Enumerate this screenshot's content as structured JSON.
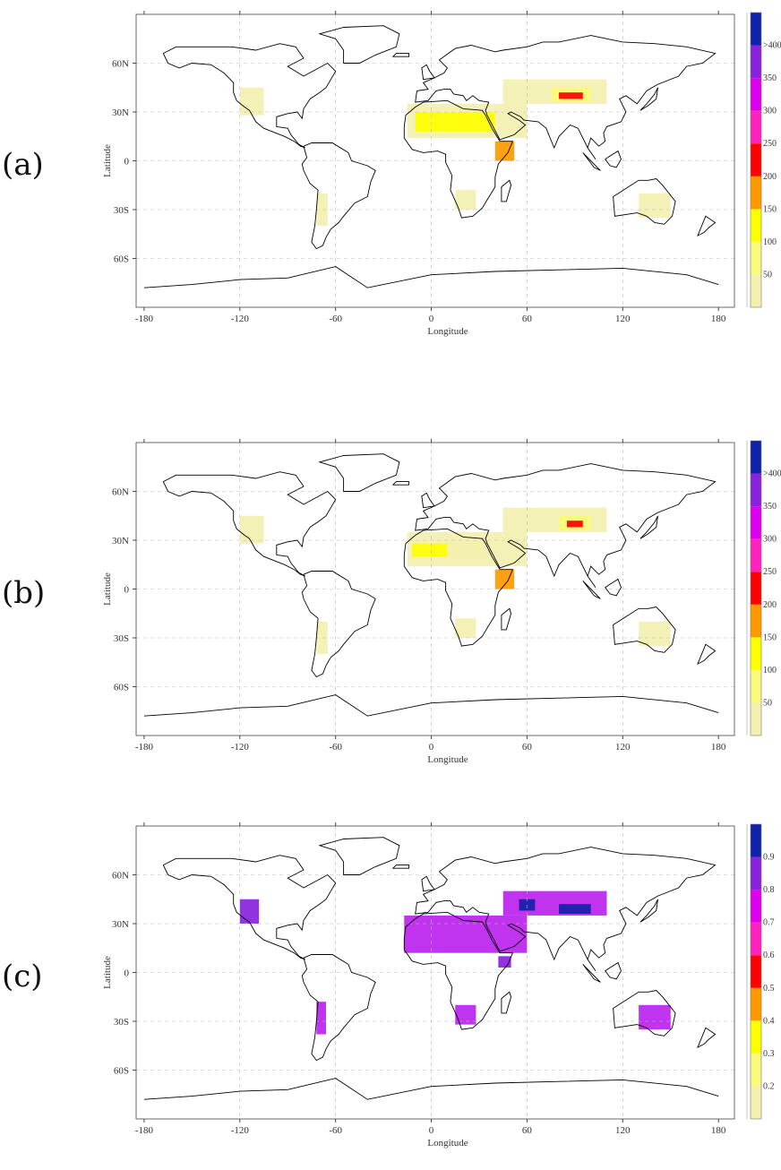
{
  "panels": [
    {
      "label": "(a)",
      "xlabel": "Longitude",
      "ylabel": "Latitude",
      "colorbar": {
        "colors": [
          "#f3f0b0",
          "#fbfa7a",
          "#ffff00",
          "#ff9900",
          "#ff0000",
          "#ff22bb",
          "#dd00ee",
          "#8822dd",
          "#1122aa"
        ],
        "labels": [
          "50",
          "100",
          "150",
          "200",
          "250",
          "300",
          "350",
          ">400"
        ]
      },
      "regions": [
        {
          "lon0": -15,
          "lon1": 60,
          "lat0": 14,
          "lat1": 35,
          "color": "#f3f0b0"
        },
        {
          "lon0": -10,
          "lon1": 40,
          "lat0": 18,
          "lat1": 30,
          "color": "#ffff00"
        },
        {
          "lon0": 45,
          "lon1": 110,
          "lat0": 35,
          "lat1": 50,
          "color": "#f3f0b0"
        },
        {
          "lon0": 75,
          "lon1": 100,
          "lat0": 36,
          "lat1": 45,
          "color": "#fbfa7a"
        },
        {
          "lon0": -120,
          "lon1": -105,
          "lat0": 28,
          "lat1": 45,
          "color": "#f3f0b0"
        },
        {
          "lon0": 130,
          "lon1": 150,
          "lat0": -35,
          "lat1": -20,
          "color": "#f3f0b0"
        },
        {
          "lon0": 15,
          "lon1": 28,
          "lat0": -30,
          "lat1": -18,
          "color": "#f3f0b0"
        },
        {
          "lon0": -72,
          "lon1": -65,
          "lat0": -40,
          "lat1": -20,
          "color": "#f3f0b0"
        },
        {
          "lon0": 40,
          "lon1": 52,
          "lat0": 0,
          "lat1": 12,
          "color": "#ff9900"
        },
        {
          "lon0": 80,
          "lon1": 95,
          "lat0": 38,
          "lat1": 42,
          "color": "#ff0000"
        }
      ]
    },
    {
      "label": "(b)",
      "xlabel": "Longitude",
      "ylabel": "Latitude",
      "colorbar": {
        "colors": [
          "#f3f0b0",
          "#fbfa7a",
          "#ffff00",
          "#ff9900",
          "#ff0000",
          "#ff22bb",
          "#dd00ee",
          "#8822dd",
          "#1122aa"
        ],
        "labels": [
          "50",
          "100",
          "150",
          "200",
          "250",
          "300",
          "350",
          ">400"
        ]
      },
      "regions": [
        {
          "lon0": -15,
          "lon1": 60,
          "lat0": 14,
          "lat1": 35,
          "color": "#f3f0b0"
        },
        {
          "lon0": -12,
          "lon1": 35,
          "lat0": 18,
          "lat1": 30,
          "color": "#f3f0b0"
        },
        {
          "lon0": -12,
          "lon1": 10,
          "lat0": 20,
          "lat1": 28,
          "color": "#ffff00"
        },
        {
          "lon0": 45,
          "lon1": 110,
          "lat0": 35,
          "lat1": 50,
          "color": "#f3f0b0"
        },
        {
          "lon0": 80,
          "lon1": 100,
          "lat0": 36,
          "lat1": 45,
          "color": "#fbfa7a"
        },
        {
          "lon0": -120,
          "lon1": -105,
          "lat0": 28,
          "lat1": 45,
          "color": "#f3f0b0"
        },
        {
          "lon0": 130,
          "lon1": 150,
          "lat0": -35,
          "lat1": -20,
          "color": "#f3f0b0"
        },
        {
          "lon0": 15,
          "lon1": 28,
          "lat0": -30,
          "lat1": -18,
          "color": "#f3f0b0"
        },
        {
          "lon0": -72,
          "lon1": -65,
          "lat0": -40,
          "lat1": -20,
          "color": "#f3f0b0"
        },
        {
          "lon0": 40,
          "lon1": 52,
          "lat0": 0,
          "lat1": 12,
          "color": "#ff9900"
        },
        {
          "lon0": 85,
          "lon1": 95,
          "lat0": 38,
          "lat1": 42,
          "color": "#ff0000"
        }
      ]
    },
    {
      "label": "(c)",
      "xlabel": "Longitude",
      "ylabel": "Latitude",
      "colorbar": {
        "colors": [
          "#f3f0b0",
          "#fbfa7a",
          "#ffff00",
          "#ff9900",
          "#ff0000",
          "#ff22bb",
          "#dd00ee",
          "#8822dd",
          "#1122aa"
        ],
        "labels": [
          "0.2",
          "0.3",
          "0.4",
          "0.5",
          "0.6",
          "0.7",
          "0.8",
          "0.9"
        ]
      },
      "regions": [
        {
          "lon0": -17,
          "lon1": 60,
          "lat0": 12,
          "lat1": 35,
          "color": "#bb22ee"
        },
        {
          "lon0": 45,
          "lon1": 110,
          "lat0": 35,
          "lat1": 50,
          "color": "#bb22ee"
        },
        {
          "lon0": 80,
          "lon1": 100,
          "lat0": 36,
          "lat1": 42,
          "color": "#1122aa"
        },
        {
          "lon0": 55,
          "lon1": 65,
          "lat0": 38,
          "lat1": 45,
          "color": "#1122aa"
        },
        {
          "lon0": -120,
          "lon1": -108,
          "lat0": 30,
          "lat1": 45,
          "color": "#8822dd"
        },
        {
          "lon0": 130,
          "lon1": 150,
          "lat0": -35,
          "lat1": -20,
          "color": "#bb22ee"
        },
        {
          "lon0": 15,
          "lon1": 28,
          "lat0": -32,
          "lat1": -20,
          "color": "#bb22ee"
        },
        {
          "lon0": -72,
          "lon1": -66,
          "lat0": -38,
          "lat1": -18,
          "color": "#bb22ee"
        },
        {
          "lon0": 42,
          "lon1": 50,
          "lat0": 3,
          "lat1": 10,
          "color": "#8822dd"
        }
      ]
    }
  ],
  "axes": {
    "lon_ticks": [
      "-180",
      "-120",
      "-60",
      "0",
      "60",
      "120",
      "180"
    ],
    "lat_ticks": [
      "60N",
      "30N",
      "0",
      "30S",
      "60S"
    ]
  }
}
